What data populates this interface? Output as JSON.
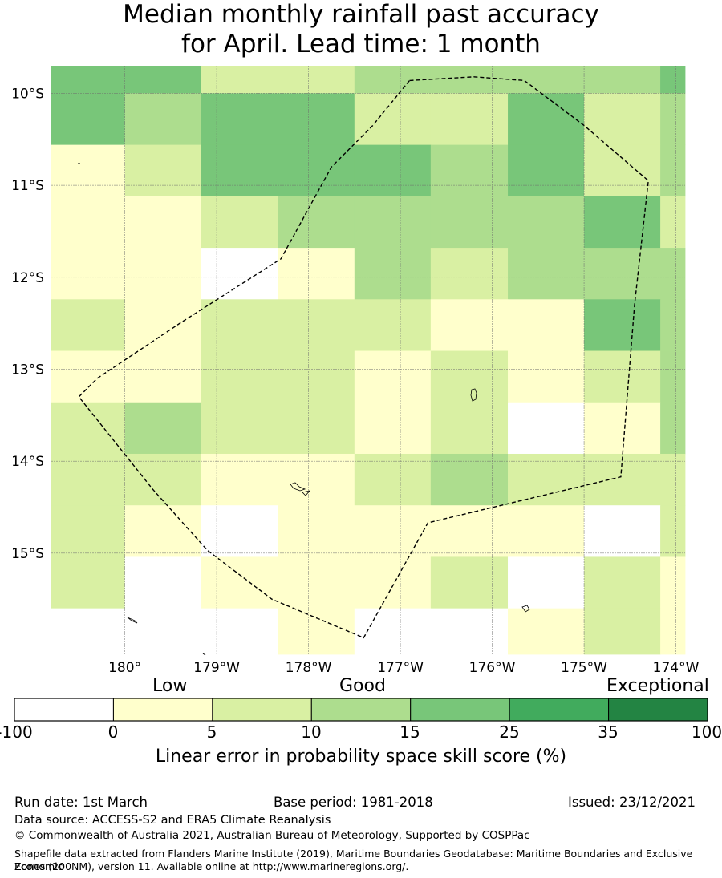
{
  "title_line1": "Median monthly rainfall past accuracy",
  "title_line2": "for April. Lead time: 1 month",
  "chart_data": {
    "type": "heatmap",
    "title": "Median monthly rainfall past accuracy for April. Lead time: 1 month",
    "x_axis": {
      "range_lon": [
        -180.8,
        -173.9
      ],
      "ticks": [
        "180°",
        "179°W",
        "178°W",
        "177°W",
        "176°W",
        "175°W",
        "174°W"
      ]
    },
    "y_axis": {
      "range_lat": [
        -9.7,
        -16.1
      ],
      "ticks": [
        "10°S",
        "11°S",
        "12°S",
        "13°S",
        "14°S",
        "15°S"
      ]
    },
    "grid_columns_lon": [
      -180.8,
      -180.0,
      -179.17,
      -178.33,
      -177.5,
      -176.67,
      -175.83,
      -175.0,
      -174.17,
      -173.9
    ],
    "grid_rows_lat": [
      -9.7,
      -10.0,
      -10.56,
      -11.12,
      -11.68,
      -12.24,
      -12.8,
      -13.36,
      -13.92,
      -14.48,
      -15.04,
      -15.6,
      -16.16
    ],
    "grid_scores": [
      [
        4,
        4,
        2,
        2,
        3,
        3,
        3,
        3,
        4
      ],
      [
        4,
        3,
        4,
        4,
        2,
        2,
        4,
        2,
        3
      ],
      [
        1,
        2,
        4,
        4,
        4,
        3,
        4,
        2,
        3
      ],
      [
        1,
        1,
        2,
        3,
        3,
        3,
        3,
        4,
        2
      ],
      [
        1,
        1,
        0,
        1,
        3,
        2,
        3,
        3,
        3
      ],
      [
        2,
        1,
        2,
        2,
        2,
        1,
        1,
        4,
        3
      ],
      [
        1,
        1,
        2,
        2,
        1,
        2,
        1,
        2,
        3
      ],
      [
        2,
        3,
        2,
        2,
        1,
        2,
        0,
        1,
        3
      ],
      [
        2,
        2,
        1,
        1,
        2,
        3,
        2,
        2,
        2
      ],
      [
        2,
        1,
        0,
        1,
        1,
        1,
        1,
        0,
        2
      ],
      [
        2,
        0,
        1,
        1,
        1,
        2,
        0,
        2,
        1
      ],
      [
        0,
        0,
        0,
        1,
        0,
        0,
        1,
        2,
        1
      ]
    ],
    "colorbar": {
      "labels": [
        "-100",
        "0",
        "5",
        "10",
        "15",
        "25",
        "35",
        "100"
      ],
      "colors": [
        "#ffffff",
        "#ffffcc",
        "#d9f0a3",
        "#addd8e",
        "#78c679",
        "#41ab5d",
        "#238443"
      ],
      "category_low": "Low",
      "category_good": "Good",
      "category_exceptional": "Exceptional",
      "xlabel": "Linear error in probability space skill score (%)"
    },
    "eez_boundary_lonlat": [
      [
        -176.9,
        -9.86
      ],
      [
        -176.2,
        -9.82
      ],
      [
        -175.65,
        -9.86
      ],
      [
        -175.0,
        -10.35
      ],
      [
        -174.3,
        -10.95
      ],
      [
        -174.45,
        -12.3
      ],
      [
        -174.6,
        -14.17
      ],
      [
        -176.7,
        -14.67
      ],
      [
        -177.4,
        -15.92
      ],
      [
        -178.4,
        -15.5
      ],
      [
        -179.1,
        -14.97
      ],
      [
        -179.7,
        -14.3
      ],
      [
        -180.5,
        -13.3
      ],
      [
        -180.3,
        -13.1
      ],
      [
        -179.4,
        -12.5
      ],
      [
        -178.3,
        -11.8
      ],
      [
        -177.75,
        -10.8
      ],
      [
        -177.3,
        -10.35
      ],
      [
        -176.9,
        -9.86
      ]
    ]
  },
  "footer": {
    "run_date": "Run date: 1st March",
    "base_period": "Base period: 1981-2018",
    "issued": "Issued: 23/12/2021",
    "data_source": "Data source: ACCESS-S2 and ERA5 Climate Reanalysis",
    "copyright": "© Commonwealth of Australia 2021, Australian Bureau of Meteorology, Supported by COSPPac",
    "shapefile_line1": "Shapefile data extracted from Flanders Marine Institute (2019), Maritime Boundaries Geodatabase: Maritime Boundaries and Exclusive Economic",
    "shapefile_line2": "Zones (200NM), version 11. Available online at http://www.marineregions.org/."
  }
}
